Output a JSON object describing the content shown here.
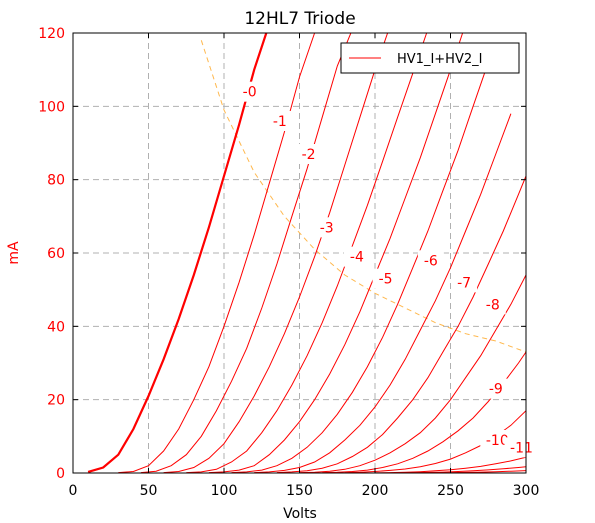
{
  "chart_data": {
    "type": "line",
    "title": "12HL7 Triode",
    "xlabel": "Volts",
    "ylabel": "mA",
    "xlim": [
      0,
      300
    ],
    "ylim": [
      0,
      120
    ],
    "xticks": [
      0,
      50,
      100,
      150,
      200,
      250,
      300
    ],
    "yticks": [
      0,
      20,
      40,
      60,
      80,
      100,
      120
    ],
    "grid": true,
    "legend": {
      "position": "top-right",
      "entries": [
        "HV1_I+HV2_I"
      ]
    },
    "colors": {
      "curves": "#ff0000",
      "load_line": "#ffb84d",
      "ylabel": "#ff0000",
      "yticks": "#ff0000"
    },
    "series": [
      {
        "grid_label": "-0",
        "bold": true,
        "x": [
          10,
          20,
          30,
          40,
          50,
          60,
          70,
          80,
          90,
          100,
          110,
          120,
          128
        ],
        "y": [
          0.3,
          1.5,
          5,
          12,
          21,
          31,
          42,
          54,
          67,
          81,
          95,
          110,
          120
        ]
      },
      {
        "grid_label": "-1",
        "bold": false,
        "x": [
          30,
          40,
          50,
          60,
          70,
          80,
          90,
          100,
          110,
          120,
          130,
          140,
          150,
          160
        ],
        "y": [
          0.1,
          0.4,
          2,
          6,
          12,
          20,
          29,
          40,
          52,
          65,
          79,
          93,
          108,
          120
        ]
      },
      {
        "grid_label": "-2",
        "bold": false,
        "x": [
          45,
          55,
          65,
          75,
          85,
          95,
          105,
          115,
          125,
          135,
          145,
          155,
          165,
          175,
          185
        ],
        "y": [
          0.1,
          0.5,
          2,
          5,
          10,
          17,
          25,
          34,
          45,
          57,
          70,
          83,
          97,
          111,
          121
        ]
      },
      {
        "grid_label": "-3",
        "bold": false,
        "x": [
          60,
          70,
          80,
          90,
          100,
          110,
          120,
          130,
          140,
          150,
          160,
          170,
          180,
          190,
          200,
          210
        ],
        "y": [
          0.1,
          0.4,
          1.5,
          4,
          8,
          14,
          21,
          29,
          38,
          48,
          59,
          71,
          84,
          97,
          110,
          122
        ]
      },
      {
        "grid_label": "-4",
        "bold": false,
        "x": [
          75,
          85,
          95,
          105,
          115,
          125,
          135,
          145,
          155,
          165,
          175,
          185,
          195,
          205,
          215,
          225,
          235
        ],
        "y": [
          0.1,
          0.3,
          1,
          3,
          6,
          11,
          17,
          24,
          32,
          41,
          51,
          62,
          73,
          85,
          97,
          109,
          121
        ]
      },
      {
        "grid_label": "-5",
        "bold": false,
        "x": [
          90,
          100,
          110,
          120,
          130,
          140,
          150,
          160,
          170,
          180,
          190,
          200,
          210,
          220,
          230,
          240,
          250,
          258
        ],
        "y": [
          0.1,
          0.3,
          0.8,
          2,
          5,
          9,
          14,
          20,
          27,
          35,
          44,
          54,
          64,
          75,
          86,
          98,
          110,
          120
        ]
      },
      {
        "grid_label": "-6",
        "bold": false,
        "x": [
          105,
          115,
          125,
          135,
          145,
          155,
          165,
          175,
          185,
          195,
          205,
          215,
          225,
          235,
          245,
          255,
          265,
          275
        ],
        "y": [
          0.1,
          0.3,
          0.8,
          2,
          4,
          7,
          11,
          16,
          22,
          29,
          37,
          46,
          56,
          66,
          77,
          88,
          100,
          112
        ]
      },
      {
        "grid_label": "-7",
        "bold": false,
        "x": [
          120,
          130,
          140,
          150,
          160,
          170,
          180,
          190,
          200,
          210,
          220,
          230,
          240,
          250,
          260,
          270,
          280,
          290
        ],
        "y": [
          0.1,
          0.3,
          0.7,
          1.5,
          3,
          5.5,
          9,
          13,
          18,
          24,
          31,
          39,
          47,
          56,
          66,
          76,
          87,
          98
        ]
      },
      {
        "grid_label": "-8",
        "bold": false,
        "x": [
          135,
          145,
          155,
          165,
          175,
          185,
          195,
          205,
          215,
          225,
          235,
          245,
          255,
          265,
          275,
          285,
          295,
          300
        ],
        "y": [
          0.1,
          0.3,
          0.6,
          1.3,
          2.5,
          4.5,
          7,
          10.5,
          15,
          20,
          26,
          33,
          40,
          48,
          57,
          66,
          76,
          81
        ]
      },
      {
        "grid_label": "-9",
        "bold": false,
        "x": [
          150,
          160,
          170,
          180,
          190,
          200,
          210,
          220,
          230,
          240,
          250,
          260,
          270,
          280,
          290,
          300
        ],
        "y": [
          0.1,
          0.2,
          0.5,
          1,
          2,
          3.5,
          5.5,
          8,
          11,
          15,
          20,
          26,
          32,
          39,
          46,
          54
        ]
      },
      {
        "grid_label": "-10",
        "bold": false,
        "x": [
          165,
          175,
          185,
          195,
          205,
          215,
          225,
          235,
          245,
          255,
          265,
          275,
          285,
          295,
          300
        ],
        "y": [
          0.1,
          0.2,
          0.4,
          0.8,
          1.5,
          2.5,
          4,
          6,
          8.5,
          11.5,
          15,
          19.5,
          24.5,
          30,
          33
        ]
      },
      {
        "grid_label": "-11",
        "bold": false,
        "x": [
          180,
          190,
          200,
          210,
          220,
          230,
          240,
          250,
          260,
          270,
          280,
          290,
          300
        ],
        "y": [
          0.1,
          0.2,
          0.4,
          0.7,
          1.1,
          1.7,
          2.6,
          3.8,
          5.5,
          7.5,
          10,
          13,
          17
        ]
      },
      {
        "grid_label": "",
        "bold": false,
        "x": [
          200,
          210,
          220,
          230,
          240,
          250,
          260,
          270,
          280,
          290,
          300
        ],
        "y": [
          0.05,
          0.1,
          0.2,
          0.35,
          0.6,
          0.9,
          1.3,
          1.8,
          2.5,
          3.3,
          4.3
        ]
      },
      {
        "grid_label": "",
        "bold": false,
        "x": [
          215,
          225,
          235,
          245,
          255,
          265,
          275,
          285,
          295,
          300
        ],
        "y": [
          0.05,
          0.1,
          0.15,
          0.25,
          0.4,
          0.6,
          0.85,
          1.15,
          1.5,
          1.7
        ]
      },
      {
        "grid_label": "",
        "bold": false,
        "x": [
          230,
          240,
          250,
          260,
          270,
          280,
          290,
          300
        ],
        "y": [
          0.03,
          0.06,
          0.1,
          0.16,
          0.24,
          0.35,
          0.5,
          0.65
        ]
      }
    ],
    "load_line": {
      "x": [
        85,
        100,
        120,
        140,
        160,
        180,
        200,
        220,
        240,
        260,
        280,
        300
      ],
      "y": [
        118,
        99,
        82,
        70,
        61,
        54,
        49,
        45,
        41,
        38,
        36,
        33
      ]
    },
    "curve_labels": [
      {
        "text": "-0",
        "x": 117,
        "y": 104
      },
      {
        "text": "-1",
        "x": 137,
        "y": 96
      },
      {
        "text": "-2",
        "x": 156,
        "y": 87
      },
      {
        "text": "-3",
        "x": 168,
        "y": 67
      },
      {
        "text": "-4",
        "x": 188,
        "y": 59
      },
      {
        "text": "-5",
        "x": 207,
        "y": 53
      },
      {
        "text": "-6",
        "x": 237,
        "y": 58
      },
      {
        "text": "-7",
        "x": 259,
        "y": 52
      },
      {
        "text": "-8",
        "x": 278,
        "y": 46
      },
      {
        "text": "-9",
        "x": 280,
        "y": 23
      },
      {
        "text": "-10",
        "x": 281,
        "y": 9
      },
      {
        "text": "-11",
        "x": 297,
        "y": 7
      }
    ]
  }
}
